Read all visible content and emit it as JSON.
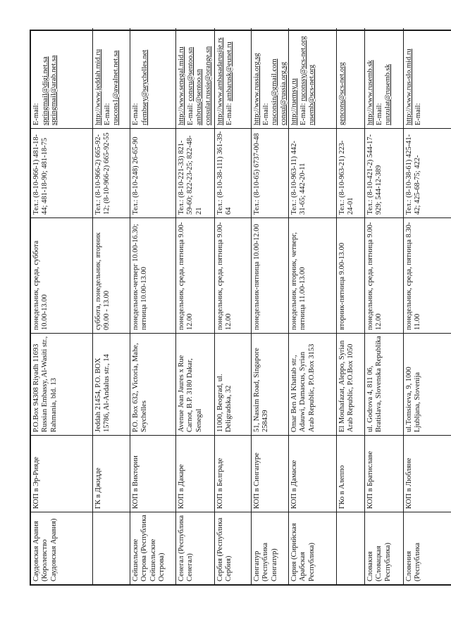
{
  "colors": {
    "page_bg": "#ffffff",
    "text": "#141414",
    "border": "#1c1c1c"
  },
  "orientation_note": "table rotated 90deg counterclockwise on page",
  "table": {
    "columns": [
      "country",
      "consulate",
      "address",
      "schedule",
      "phone",
      "contacts"
    ],
    "rows": [
      {
        "country": "Саудовская Аравия (Королевство Саудовская Аравия)",
        "consulate": "КОП в Эр-Рияде",
        "address": "P.O.Box 94308 Riyadh 11693 Russian Embassy, Al-Wasiti str., Rahmania, bld. 13",
        "schedule": "понедельник, среда, суббота 10.00-13.00",
        "phone": "Тел.: (8-10-966-1) 481-18-44; 481-18-90; 481-18-75",
        "contacts": [
          [
            {
              "t": "E-mail:",
              "u": false
            }
          ],
          [
            {
              "t": "springmail@digi.net.sa",
              "u": true
            }
          ],
          [
            {
              "t": "springmail@arab.net.sa",
              "u": true
            }
          ]
        ]
      },
      {
        "country": "",
        "consulate": "ГК в Джидде",
        "address": "Jeddah 21454, P.O. BOX 15786, Al-Andalus str., 14",
        "schedule": "суббота, понедельник, вторник 09.00 - 13.00",
        "phone": "Тел.: (8-10-966-2) 665-92-12; (8-10-966-2) 665-92-55",
        "contacts": [
          [
            {
              "t": "http://www.jeddah.mid.ru",
              "u": true
            }
          ],
          [
            {
              "t": "E-mail:",
              "u": false
            }
          ],
          [
            {
              "t": "ruscons1@awalnet.net.sa",
              "u": true
            }
          ]
        ]
      },
      {
        "country": "Сейшельские Острова (Республика Сейшельские Острова)",
        "consulate": "КОП в Виктории",
        "address": "P.O. Box 632, Victoria, Mahe, Seychelles",
        "schedule": "понедельник-четверг 10.00-16.30; пятница 10.00-13.00",
        "phone": "Тел.: (8-10-248) 26-65-90",
        "contacts": [
          [
            {
              "t": "E-mail:",
              "u": false
            }
          ],
          [
            {
              "t": "rfembsey@seychelles.net",
              "u": true
            }
          ]
        ]
      },
      {
        "country": "Сенегал (Республика Сенегал)",
        "consulate": "КОП в Дакаре",
        "address": "Avenue Jean Jaures x Rue Carnot, B.P. 3180 Dakar, Senegal",
        "schedule": "понедельник, среда, пятница 9.00-12.00",
        "phone": "Тел.: (8-10-221-33) 821-59-60; 822-23-25; 822-48-21",
        "contacts": [
          [
            {
              "t": "http://www.senegal.mid.ru",
              "u": true
            }
          ],
          [
            {
              "t": "E-mail: ",
              "u": false
            },
            {
              "t": "consru@sentoo.sn",
              "u": true
            }
          ],
          [
            {
              "t": "ambrus@sentoo.sn",
              "u": true
            }
          ],
          [
            {
              "t": "consulat.russie@orange.sn",
              "u": true
            }
          ]
        ]
      },
      {
        "country": "Сербия (Республика Сербия)",
        "consulate": "КОП в Белграде",
        "address": "11000, Beograd, ul. Deligradska, 32",
        "schedule": "понедельник, среда, пятница 9.00-12.00",
        "phone": "Тел.: (8-10-38-111) 361-39-64",
        "contacts": [
          [
            {
              "t": "http://www.ambasadarusije.rs",
              "u": true
            }
          ],
          [
            {
              "t": "E-mail: ",
              "u": false
            },
            {
              "t": "ambarusk@eunet.ru",
              "u": true
            }
          ]
        ]
      },
      {
        "country": "Сингапур (Республика Сингапур)",
        "consulate": "КОП в Сингапуре",
        "address": "51, Nassim Road, Singapore 258439",
        "schedule": "понедельник-пятница 10.00-12.00",
        "phone": "Тел.: (8-10-65) 6737-00-48",
        "contacts": [
          [
            {
              "t": "http://www.russia.org.sg",
              "u": true
            }
          ],
          [
            {
              "t": "E-mail:",
              "u": false
            }
          ],
          [
            {
              "t": "rusconsin@gmail.com",
              "u": true
            }
          ],
          [
            {
              "t": "consul@russia.org.sg",
              "u": true
            }
          ]
        ]
      },
      {
        "country": "Сирия (Сирийская Арабская Республика)",
        "consulate": "КОП в Дамаске",
        "address": "Omar Ben Al Khattab str., Adauwi, Damascus, Syrian Arab Republic, P.O.Box 3153",
        "schedule": "понедельник, вторник, четверг, пятница 11.00-13.00",
        "phone": "Тел.: (8-10-963-11) 442-31-65; 442-20-11",
        "contacts": [
          [
            {
              "t": "http://ruemsy.ru",
              "u": true
            }
          ],
          [
            {
              "t": "E-mail: ",
              "u": false
            },
            {
              "t": "ruconssy@scs-net.org",
              "u": true
            }
          ],
          [
            {
              "t": "rusemb@scs-net.org",
              "u": true
            }
          ]
        ]
      },
      {
        "country": "",
        "consulate": "ГКо в Алеппо",
        "address": "El Mouhafazat, Aleppo, Syrian Arab Republic, P.O.Box 1050",
        "schedule": "вторник-пятница 9.00-13.00",
        "phone": "Тел.: (8-10-963-21) 223-24-01",
        "contacts": [
          [
            {
              "t": "gencons@scs-net.org",
              "u": true
            }
          ]
        ]
      },
      {
        "country": "Словакия (Словацкая Республика)",
        "consulate": "КОП в Братиславе",
        "address": "ul. Godrova 4, 811 06, Bratislava, Slovenska Republika",
        "schedule": "понедельник, среда, пятница 9.00-12.00",
        "phone": "Тел.: (8-10-421-2) 544-17-929; 544-12-389",
        "contacts": [
          [
            {
              "t": "http://www.rusemb.sk",
              "u": true
            }
          ],
          [
            {
              "t": "E-mail:",
              "u": false
            }
          ],
          [
            {
              "t": "runzulat@rusemb.sk",
              "u": true
            }
          ]
        ]
      },
      {
        "country": "Словения (Республика",
        "consulate": "КОП в Любляне",
        "address": "ul.Tomsiceva, 9, 1000 Ljubljana, Slovenija",
        "schedule": "понедельник, среда, пятница 8.30-11.00",
        "phone": "Тел.: (8-10-38-61) 425-41-42; 425-68-75; 422-",
        "contacts": [
          [
            {
              "t": "http://www.rus-slo.mid.ru",
              "u": true
            }
          ],
          [
            {
              "t": "E-mail:",
              "u": false
            }
          ]
        ]
      }
    ]
  }
}
